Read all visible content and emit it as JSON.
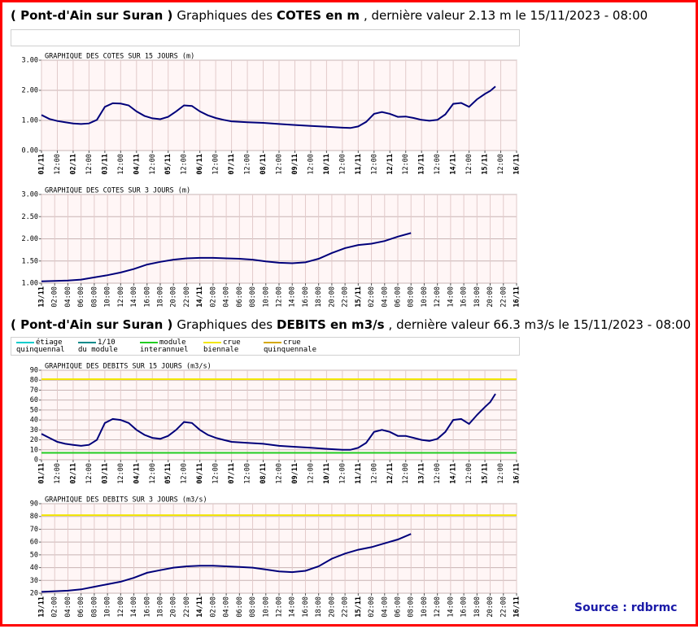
{
  "headers": [
    {
      "parts": [
        {
          "text": "( Pont-d'Ain sur Suran )",
          "bold": true
        },
        {
          "text": "Graphiques des",
          "bold": false
        },
        {
          "text": "COTES en m",
          "bold": true
        },
        {
          "text": ", dernière valeur 2.13 m le 15/11/2023 - 08:00",
          "bold": false
        }
      ]
    },
    {
      "parts": [
        {
          "text": "( Pont-d'Ain sur Suran )",
          "bold": true
        },
        {
          "text": "Graphiques des",
          "bold": false
        },
        {
          "text": "DEBITS en m3/s",
          "bold": true
        },
        {
          "text": ", dernière valeur 66.3 m3/s le 15/11/2023 - 08:00",
          "bold": false
        }
      ]
    }
  ],
  "legend": [
    {
      "label": [
        "étiage",
        "quinquennal"
      ],
      "color": "#00cccc"
    },
    {
      "label": [
        "1/10",
        "du module"
      ],
      "color": "#008b8b"
    },
    {
      "label": [
        "module",
        "interannuel"
      ],
      "color": "#22cc22",
      "value": 7
    },
    {
      "label": [
        "crue",
        "biennale"
      ],
      "color": "#f2e600",
      "value": 81
    },
    {
      "label": [
        "crue",
        "quinquennale"
      ],
      "color": "#d4a800"
    }
  ],
  "source": "Source : rdbrmc",
  "chart_data": [
    {
      "type": "line",
      "title": "GRAPHIQUE DES COTES SUR 15 JOURS (m)",
      "color": "#00007a",
      "grid": true,
      "thresholds": false,
      "xlim": [
        0,
        360
      ],
      "xticks": [
        {
          "value": 0,
          "label": "01/11"
        },
        {
          "value": 12,
          "label": "12:00"
        },
        {
          "value": 24,
          "label": "02/11"
        },
        {
          "value": 36,
          "label": "12:00"
        },
        {
          "value": 48,
          "label": "03/11"
        },
        {
          "value": 60,
          "label": "12:00"
        },
        {
          "value": 72,
          "label": "04/11"
        },
        {
          "value": 84,
          "label": "12:00"
        },
        {
          "value": 96,
          "label": "05/11"
        },
        {
          "value": 108,
          "label": "12:00"
        },
        {
          "value": 120,
          "label": "06/11"
        },
        {
          "value": 132,
          "label": "12:00"
        },
        {
          "value": 144,
          "label": "07/11"
        },
        {
          "value": 156,
          "label": "12:00"
        },
        {
          "value": 168,
          "label": "08/11"
        },
        {
          "value": 180,
          "label": "12:00"
        },
        {
          "value": 192,
          "label": "09/11"
        },
        {
          "value": 204,
          "label": "12:00"
        },
        {
          "value": 216,
          "label": "10/11"
        },
        {
          "value": 228,
          "label": "12:00"
        },
        {
          "value": 240,
          "label": "11/11"
        },
        {
          "value": 252,
          "label": "12:00"
        },
        {
          "value": 264,
          "label": "12/11"
        },
        {
          "value": 276,
          "label": "12:00"
        },
        {
          "value": 288,
          "label": "13/11"
        },
        {
          "value": 300,
          "label": "12:00"
        },
        {
          "value": 312,
          "label": "14/11"
        },
        {
          "value": 324,
          "label": "12:00"
        },
        {
          "value": 336,
          "label": "15/11"
        },
        {
          "value": 348,
          "label": "12:00"
        },
        {
          "value": 360,
          "label": "16/11"
        }
      ],
      "ylim": [
        0,
        3
      ],
      "yticks": [
        {
          "value": 0,
          "label": "0.00"
        },
        {
          "value": 1,
          "label": "1.00"
        },
        {
          "value": 2,
          "label": "2.00"
        },
        {
          "value": 3,
          "label": "3.00"
        }
      ],
      "x": [
        0,
        6,
        12,
        18,
        24,
        30,
        36,
        42,
        48,
        54,
        60,
        66,
        72,
        78,
        84,
        90,
        96,
        102,
        108,
        114,
        120,
        126,
        132,
        138,
        144,
        156,
        168,
        180,
        192,
        204,
        216,
        228,
        234,
        240,
        246,
        252,
        258,
        264,
        270,
        276,
        282,
        288,
        294,
        300,
        306,
        312,
        318,
        324,
        330,
        336,
        340,
        344
      ],
      "values": [
        1.18,
        1.05,
        0.98,
        0.94,
        0.9,
        0.88,
        0.9,
        1.02,
        1.45,
        1.57,
        1.56,
        1.5,
        1.3,
        1.15,
        1.07,
        1.04,
        1.12,
        1.3,
        1.5,
        1.48,
        1.3,
        1.17,
        1.08,
        1.02,
        0.97,
        0.94,
        0.92,
        0.88,
        0.85,
        0.82,
        0.79,
        0.76,
        0.75,
        0.8,
        0.95,
        1.22,
        1.28,
        1.22,
        1.12,
        1.13,
        1.08,
        1.02,
        0.99,
        1.02,
        1.2,
        1.55,
        1.58,
        1.45,
        1.7,
        1.88,
        1.98,
        2.13
      ]
    },
    {
      "type": "line",
      "title": "GRAPHIQUE DES COTES SUR 3 JOURS (m)",
      "color": "#00007a",
      "grid": true,
      "thresholds": false,
      "xlim": [
        0,
        72
      ],
      "xticks": [
        {
          "value": 0,
          "label": "13/11"
        },
        {
          "value": 2,
          "label": "02:00"
        },
        {
          "value": 4,
          "label": "04:00"
        },
        {
          "value": 6,
          "label": "06:00"
        },
        {
          "value": 8,
          "label": "08:00"
        },
        {
          "value": 10,
          "label": "10:00"
        },
        {
          "value": 12,
          "label": "12:00"
        },
        {
          "value": 14,
          "label": "14:00"
        },
        {
          "value": 16,
          "label": "16:00"
        },
        {
          "value": 18,
          "label": "18:00"
        },
        {
          "value": 20,
          "label": "20:00"
        },
        {
          "value": 22,
          "label": "22:00"
        },
        {
          "value": 24,
          "label": "14/11"
        },
        {
          "value": 26,
          "label": "02:00"
        },
        {
          "value": 28,
          "label": "04:00"
        },
        {
          "value": 30,
          "label": "06:00"
        },
        {
          "value": 32,
          "label": "08:00"
        },
        {
          "value": 34,
          "label": "10:00"
        },
        {
          "value": 36,
          "label": "12:00"
        },
        {
          "value": 38,
          "label": "14:00"
        },
        {
          "value": 40,
          "label": "16:00"
        },
        {
          "value": 42,
          "label": "18:00"
        },
        {
          "value": 44,
          "label": "20:00"
        },
        {
          "value": 46,
          "label": "22:00"
        },
        {
          "value": 48,
          "label": "15/11"
        },
        {
          "value": 50,
          "label": "02:00"
        },
        {
          "value": 52,
          "label": "04:00"
        },
        {
          "value": 54,
          "label": "06:00"
        },
        {
          "value": 56,
          "label": "08:00"
        },
        {
          "value": 58,
          "label": "10:00"
        },
        {
          "value": 60,
          "label": "12:00"
        },
        {
          "value": 62,
          "label": "14:00"
        },
        {
          "value": 64,
          "label": "16:00"
        },
        {
          "value": 66,
          "label": "18:00"
        },
        {
          "value": 68,
          "label": "20:00"
        },
        {
          "value": 70,
          "label": "22:00"
        },
        {
          "value": 72,
          "label": "16/11"
        }
      ],
      "ylim": [
        1,
        3
      ],
      "yticks": [
        {
          "value": 1,
          "label": "1.00"
        },
        {
          "value": 1.5,
          "label": "1.50"
        },
        {
          "value": 2,
          "label": "2.00"
        },
        {
          "value": 2.5,
          "label": "2.50"
        },
        {
          "value": 3,
          "label": "3.00"
        }
      ],
      "x": [
        0,
        2,
        4,
        6,
        8,
        10,
        12,
        14,
        16,
        18,
        20,
        22,
        24,
        26,
        28,
        30,
        32,
        34,
        36,
        38,
        40,
        42,
        44,
        46,
        48,
        50,
        52,
        54,
        56
      ],
      "values": [
        1.04,
        1.05,
        1.06,
        1.08,
        1.13,
        1.18,
        1.24,
        1.32,
        1.42,
        1.48,
        1.53,
        1.56,
        1.57,
        1.57,
        1.56,
        1.55,
        1.53,
        1.49,
        1.46,
        1.45,
        1.47,
        1.55,
        1.68,
        1.79,
        1.86,
        1.89,
        1.95,
        2.05,
        2.13
      ]
    },
    {
      "type": "line",
      "title": "GRAPHIQUE DES DEBITS SUR 15 JOURS (m3/s)",
      "color": "#00007a",
      "grid": true,
      "thresholds": true,
      "xlim": [
        0,
        360
      ],
      "xticks": [
        {
          "value": 0,
          "label": "01/11"
        },
        {
          "value": 12,
          "label": "12:00"
        },
        {
          "value": 24,
          "label": "02/11"
        },
        {
          "value": 36,
          "label": "12:00"
        },
        {
          "value": 48,
          "label": "03/11"
        },
        {
          "value": 60,
          "label": "12:00"
        },
        {
          "value": 72,
          "label": "04/11"
        },
        {
          "value": 84,
          "label": "12:00"
        },
        {
          "value": 96,
          "label": "05/11"
        },
        {
          "value": 108,
          "label": "12:00"
        },
        {
          "value": 120,
          "label": "06/11"
        },
        {
          "value": 132,
          "label": "12:00"
        },
        {
          "value": 144,
          "label": "07/11"
        },
        {
          "value": 156,
          "label": "12:00"
        },
        {
          "value": 168,
          "label": "08/11"
        },
        {
          "value": 180,
          "label": "12:00"
        },
        {
          "value": 192,
          "label": "09/11"
        },
        {
          "value": 204,
          "label": "12:00"
        },
        {
          "value": 216,
          "label": "10/11"
        },
        {
          "value": 228,
          "label": "12:00"
        },
        {
          "value": 240,
          "label": "11/11"
        },
        {
          "value": 252,
          "label": "12:00"
        },
        {
          "value": 264,
          "label": "12/11"
        },
        {
          "value": 276,
          "label": "12:00"
        },
        {
          "value": 288,
          "label": "13/11"
        },
        {
          "value": 300,
          "label": "12:00"
        },
        {
          "value": 312,
          "label": "14/11"
        },
        {
          "value": 324,
          "label": "12:00"
        },
        {
          "value": 336,
          "label": "15/11"
        },
        {
          "value": 348,
          "label": "12:00"
        },
        {
          "value": 360,
          "label": "16/11"
        }
      ],
      "ylim": [
        0,
        90
      ],
      "yticks": [
        0,
        10,
        20,
        30,
        40,
        50,
        60,
        70,
        80,
        90
      ],
      "x": [
        0,
        6,
        12,
        18,
        24,
        30,
        36,
        42,
        48,
        54,
        60,
        66,
        72,
        78,
        84,
        90,
        96,
        102,
        108,
        114,
        120,
        126,
        132,
        138,
        144,
        156,
        168,
        180,
        192,
        204,
        216,
        228,
        234,
        240,
        246,
        252,
        258,
        264,
        270,
        276,
        282,
        288,
        294,
        300,
        306,
        312,
        318,
        324,
        330,
        336,
        340,
        344
      ],
      "values": [
        26,
        22,
        18,
        16,
        15,
        14,
        15,
        20,
        37,
        41,
        40,
        37,
        30,
        25,
        22,
        21,
        24,
        30,
        38,
        37,
        30,
        25,
        22,
        20,
        18,
        17,
        16,
        14,
        13,
        12,
        11,
        10,
        10,
        12,
        17,
        28,
        30,
        28,
        24,
        24,
        22,
        20,
        19,
        21,
        28,
        40,
        41,
        36,
        45,
        53,
        58,
        66.3
      ]
    },
    {
      "type": "line",
      "title": "GRAPHIQUE DES DEBITS SUR 3 JOURS (m3/s)",
      "color": "#00007a",
      "grid": true,
      "thresholds": true,
      "xlim": [
        0,
        72
      ],
      "xticks": [
        {
          "value": 0,
          "label": "13/11"
        },
        {
          "value": 2,
          "label": "02:00"
        },
        {
          "value": 4,
          "label": "04:00"
        },
        {
          "value": 6,
          "label": "06:00"
        },
        {
          "value": 8,
          "label": "08:00"
        },
        {
          "value": 10,
          "label": "10:00"
        },
        {
          "value": 12,
          "label": "12:00"
        },
        {
          "value": 14,
          "label": "14:00"
        },
        {
          "value": 16,
          "label": "16:00"
        },
        {
          "value": 18,
          "label": "18:00"
        },
        {
          "value": 20,
          "label": "20:00"
        },
        {
          "value": 22,
          "label": "22:00"
        },
        {
          "value": 24,
          "label": "14/11"
        },
        {
          "value": 26,
          "label": "02:00"
        },
        {
          "value": 28,
          "label": "04:00"
        },
        {
          "value": 30,
          "label": "06:00"
        },
        {
          "value": 32,
          "label": "08:00"
        },
        {
          "value": 34,
          "label": "10:00"
        },
        {
          "value": 36,
          "label": "12:00"
        },
        {
          "value": 38,
          "label": "14:00"
        },
        {
          "value": 40,
          "label": "16:00"
        },
        {
          "value": 42,
          "label": "18:00"
        },
        {
          "value": 44,
          "label": "20:00"
        },
        {
          "value": 46,
          "label": "22:00"
        },
        {
          "value": 48,
          "label": "15/11"
        },
        {
          "value": 50,
          "label": "02:00"
        },
        {
          "value": 52,
          "label": "04:00"
        },
        {
          "value": 54,
          "label": "06:00"
        },
        {
          "value": 56,
          "label": "08:00"
        },
        {
          "value": 58,
          "label": "10:00"
        },
        {
          "value": 60,
          "label": "12:00"
        },
        {
          "value": 62,
          "label": "14:00"
        },
        {
          "value": 64,
          "label": "16:00"
        },
        {
          "value": 66,
          "label": "18:00"
        },
        {
          "value": 68,
          "label": "20:00"
        },
        {
          "value": 70,
          "label": "22:00"
        },
        {
          "value": 72,
          "label": "16/11"
        }
      ],
      "ylim": [
        20,
        90
      ],
      "yticks": [
        20,
        30,
        40,
        50,
        60,
        70,
        80,
        90
      ],
      "x": [
        0,
        2,
        4,
        6,
        8,
        10,
        12,
        14,
        16,
        18,
        20,
        22,
        24,
        26,
        28,
        30,
        32,
        34,
        36,
        38,
        40,
        42,
        44,
        46,
        48,
        50,
        52,
        54,
        56
      ],
      "values": [
        21,
        21.5,
        22,
        23,
        25,
        27,
        29,
        32,
        36,
        38,
        40,
        41,
        41.5,
        41.5,
        41,
        40.5,
        40,
        38.5,
        37,
        36.5,
        37.5,
        41,
        47,
        51,
        54,
        56,
        59,
        62,
        66.3
      ]
    }
  ]
}
